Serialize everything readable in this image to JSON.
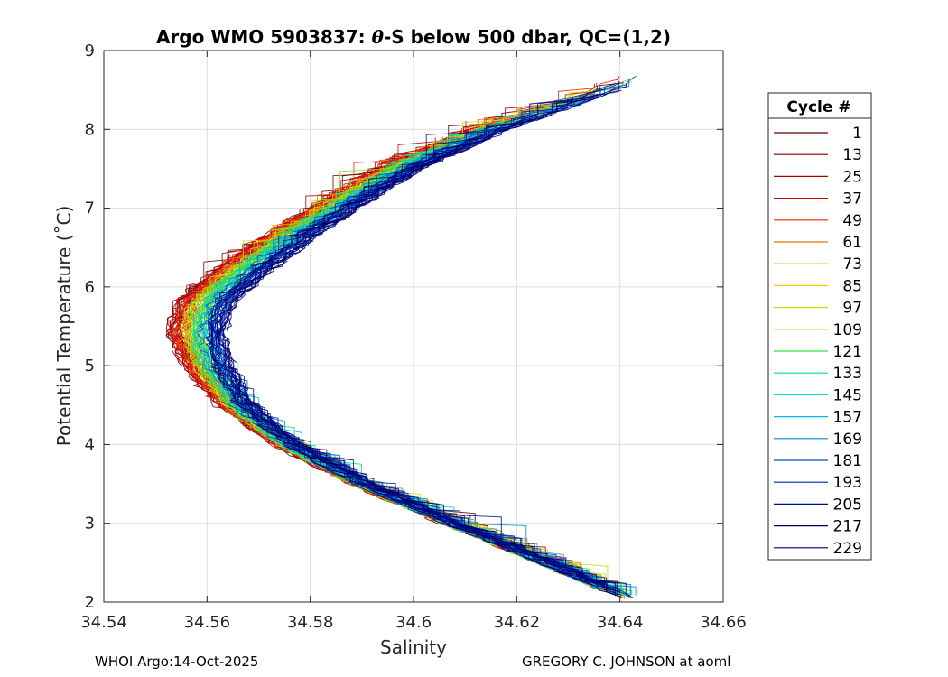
{
  "chart_data": {
    "type": "line",
    "title_prefix": "Argo WMO 5903837: ",
    "title_theta": "θ",
    "title_suffix": "-S below 500 dbar,  QC=(1,2)",
    "xlabel": "Salinity",
    "ylabel": "Potential Temperature (˚C)",
    "xlim": [
      34.54,
      34.66
    ],
    "ylim": [
      2,
      9
    ],
    "xticks": [
      34.54,
      34.56,
      34.58,
      34.6,
      34.62,
      34.64,
      34.66
    ],
    "xtick_labels": [
      "34.54",
      "34.56",
      "34.58",
      "34.6",
      "34.62",
      "34.64",
      "34.66"
    ],
    "yticks": [
      2,
      3,
      4,
      5,
      6,
      7,
      8,
      9
    ],
    "ytick_labels": [
      "2",
      "3",
      "4",
      "5",
      "6",
      "7",
      "8",
      "9"
    ],
    "grid": true,
    "legend": {
      "title": "Cycle #",
      "placement": "right",
      "entries": [
        {
          "label": "1",
          "color": "#600000"
        },
        {
          "label": "13",
          "color": "#7a0000"
        },
        {
          "label": "25",
          "color": "#a80000"
        },
        {
          "label": "37",
          "color": "#d00000"
        },
        {
          "label": "49",
          "color": "#f02a00"
        },
        {
          "label": "61",
          "color": "#f07000"
        },
        {
          "label": "73",
          "color": "#e8a000"
        },
        {
          "label": "85",
          "color": "#f0d000"
        },
        {
          "label": "97",
          "color": "#c8e000"
        },
        {
          "label": "109",
          "color": "#7ee000"
        },
        {
          "label": "121",
          "color": "#30e040"
        },
        {
          "label": "133",
          "color": "#00e08a"
        },
        {
          "label": "145",
          "color": "#00d8c8"
        },
        {
          "label": "157",
          "color": "#00b8e8"
        },
        {
          "label": "169",
          "color": "#0088d8"
        },
        {
          "label": "181",
          "color": "#0050d0"
        },
        {
          "label": "193",
          "color": "#0024b0"
        },
        {
          "label": "205",
          "color": "#00108a"
        },
        {
          "label": "217",
          "color": "#000060"
        },
        {
          "label": "229",
          "color": "#00007c"
        }
      ]
    },
    "profile_shape": {
      "theta": [
        2.05,
        2.5,
        3.0,
        3.5,
        4.0,
        4.5,
        5.0,
        5.4,
        5.8,
        6.2,
        6.6,
        7.0,
        7.5,
        8.0,
        8.3,
        8.6
      ],
      "salinity_first_cycle": [
        34.642,
        34.626,
        34.607,
        34.589,
        34.574,
        34.563,
        34.556,
        34.553,
        34.555,
        34.562,
        34.571,
        34.581,
        34.594,
        34.612,
        34.626,
        34.639
      ],
      "salinity_shift": [
        0.0,
        0.0,
        0.001,
        0.002,
        0.003,
        0.005,
        0.008,
        0.01,
        0.01,
        0.01,
        0.009,
        0.008,
        0.007,
        0.006,
        0.005,
        0.004
      ]
    }
  },
  "footer": {
    "left": "WHOI Argo:14-Oct-2025",
    "right": "GREGORY C. JOHNSON at aoml"
  }
}
